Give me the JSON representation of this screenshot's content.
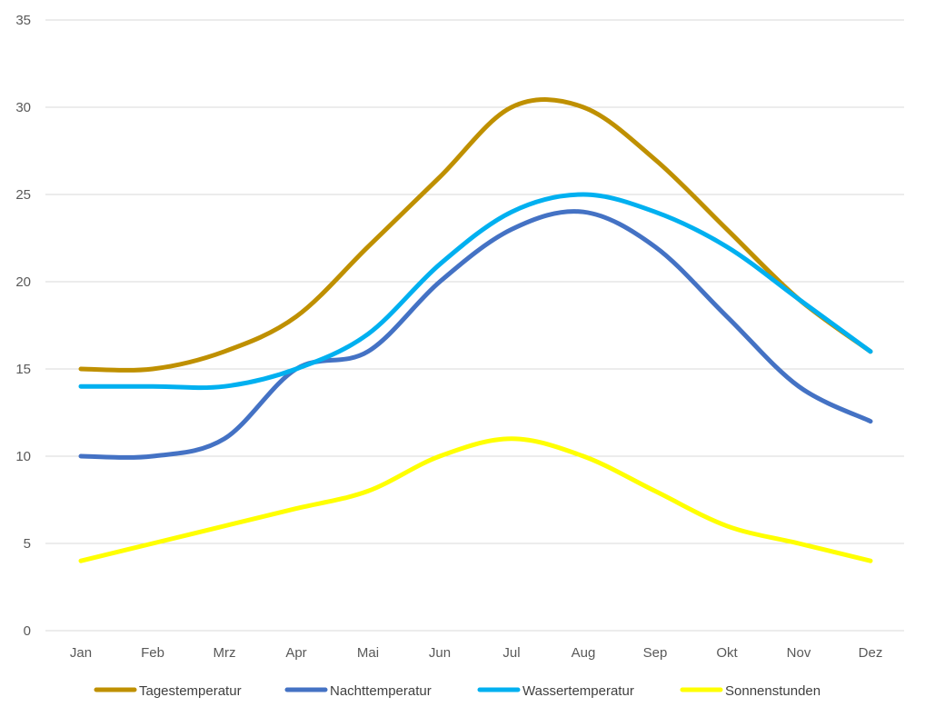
{
  "chart_data": {
    "type": "line",
    "categories": [
      "Jan",
      "Feb",
      "Mrz",
      "Apr",
      "Mai",
      "Jun",
      "Jul",
      "Aug",
      "Sep",
      "Okt",
      "Nov",
      "Dez"
    ],
    "series": [
      {
        "name": "Tagestemperatur",
        "color": "#bf9000",
        "values": [
          15,
          15,
          16,
          18,
          22,
          26,
          30,
          30,
          27,
          23,
          19,
          16
        ]
      },
      {
        "name": "Nachttemperatur",
        "color": "#4472c4",
        "values": [
          10,
          10,
          11,
          15,
          16,
          20,
          23,
          24,
          22,
          18,
          14,
          12
        ]
      },
      {
        "name": "Wassertemperatur",
        "color": "#00b0f0",
        "values": [
          14,
          14,
          14,
          15,
          17,
          21,
          24,
          25,
          24,
          22,
          19,
          16
        ]
      },
      {
        "name": "Sonnenstunden",
        "color": "#ffff00",
        "values": [
          4,
          5,
          6,
          7,
          8,
          10,
          11,
          10,
          8,
          6,
          5,
          4
        ]
      }
    ],
    "ylim": [
      0,
      35
    ],
    "yticks": [
      0,
      5,
      10,
      15,
      20,
      25,
      30,
      35
    ],
    "grid": true,
    "smooth": true,
    "legend_position": "bottom",
    "gridline_color": "#d9d9d9",
    "title": "",
    "xlabel": "",
    "ylabel": ""
  }
}
